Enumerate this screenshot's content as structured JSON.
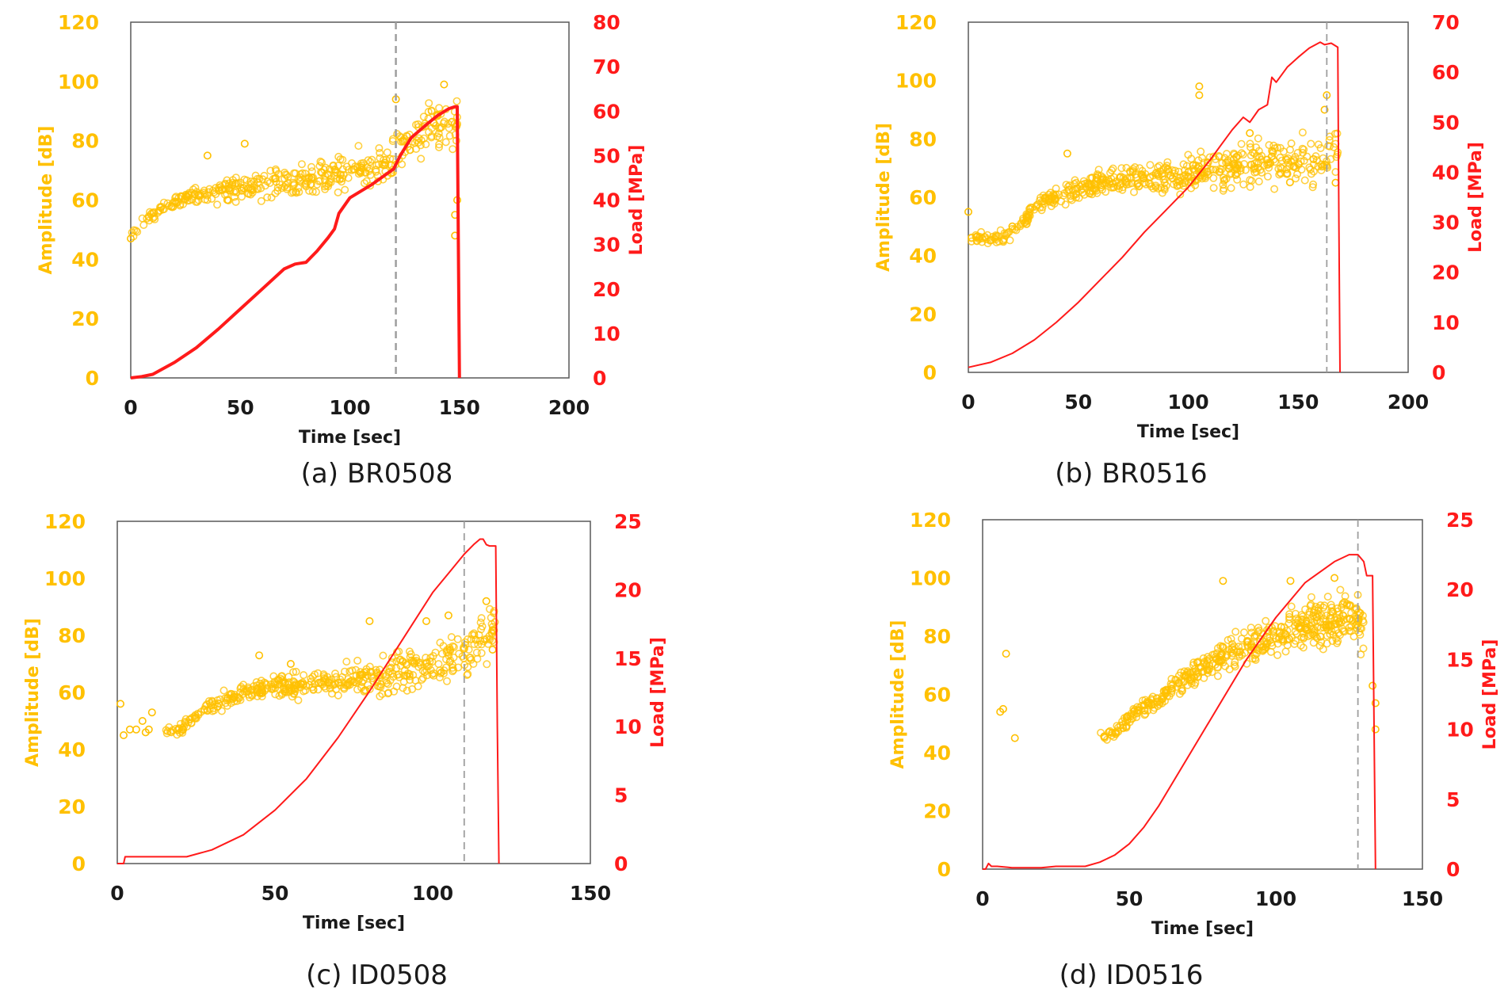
{
  "colors": {
    "amplitude": "#FFC000",
    "load": "#FF1A1A",
    "axis": "#595959",
    "vline": "#9E9E9E",
    "text": "#1a1a1a"
  },
  "chart_data": [
    {
      "type": "scatter",
      "caption": "(a) BR0508",
      "xlabel": "Time [sec]",
      "ylabel_left": "Amplitude [dB]",
      "ylabel_right": "Load [MPa]",
      "xlim": [
        0,
        200
      ],
      "xticks": [
        "0",
        "50",
        "100",
        "150",
        "200"
      ],
      "ylim_left": [
        0,
        120
      ],
      "yticks_left": [
        "0",
        "20",
        "40",
        "60",
        "80",
        "100",
        "120"
      ],
      "ylim_right": [
        0,
        80
      ],
      "yticks_right": [
        "0",
        "10",
        "20",
        "30",
        "40",
        "50",
        "60",
        "70",
        "80"
      ],
      "vline_x": 121,
      "load_width": "thick",
      "amp_density": 420,
      "amplitude_series": {
        "name": "Amplitude [dB]",
        "trend": [
          [
            0,
            47
          ],
          [
            5,
            53
          ],
          [
            12,
            56
          ],
          [
            25,
            61
          ],
          [
            40,
            63
          ],
          [
            60,
            65
          ],
          [
            80,
            67
          ],
          [
            100,
            70
          ],
          [
            115,
            72
          ],
          [
            121,
            76
          ],
          [
            130,
            82
          ],
          [
            140,
            85
          ],
          [
            149,
            86
          ]
        ],
        "outliers": [
          [
            0,
            47
          ],
          [
            35,
            75
          ],
          [
            52,
            79
          ],
          [
            121,
            94
          ],
          [
            143,
            99
          ],
          [
            148,
            55
          ],
          [
            148,
            48
          ],
          [
            149,
            60
          ]
        ]
      },
      "load_series": {
        "name": "Load [MPa]",
        "x": [
          0,
          5,
          10,
          20,
          30,
          40,
          50,
          60,
          70,
          75,
          80,
          85,
          90,
          93,
          95,
          100,
          110,
          120,
          123,
          128,
          135,
          140,
          145,
          148,
          149,
          150
        ],
        "y": [
          0,
          0.3,
          0.8,
          3.5,
          6.8,
          11,
          15.5,
          20,
          24.5,
          25.6,
          26,
          28.5,
          31.5,
          33.5,
          37,
          40.5,
          43.5,
          47,
          50,
          54,
          57,
          59,
          60.5,
          61,
          61,
          0
        ]
      }
    },
    {
      "type": "scatter",
      "caption": "(b) BR0516",
      "xlabel": "Time [sec]",
      "ylabel_left": "Amplitude [dB]",
      "ylabel_right": "Load [MPa]",
      "xlim": [
        0,
        200
      ],
      "xticks": [
        "0",
        "50",
        "100",
        "150",
        "200"
      ],
      "ylim_left": [
        0,
        120
      ],
      "yticks_left": [
        "0",
        "20",
        "40",
        "60",
        "80",
        "100",
        "120"
      ],
      "ylim_right": [
        0,
        70
      ],
      "yticks_right": [
        "0",
        "10",
        "20",
        "30",
        "40",
        "50",
        "60",
        "70"
      ],
      "vline_x": 163,
      "load_width": "thin",
      "amp_density": 560,
      "amplitude_series": {
        "name": "Amplitude [dB]",
        "trend": [
          [
            0,
            46
          ],
          [
            15,
            46
          ],
          [
            20,
            48
          ],
          [
            30,
            56
          ],
          [
            40,
            61
          ],
          [
            60,
            65
          ],
          [
            80,
            67
          ],
          [
            100,
            68
          ],
          [
            120,
            70
          ],
          [
            140,
            72
          ],
          [
            160,
            73
          ],
          [
            168,
            75
          ]
        ],
        "outliers": [
          [
            0,
            55
          ],
          [
            20,
            50
          ],
          [
            45,
            75
          ],
          [
            105,
            98
          ],
          [
            105,
            95
          ],
          [
            128,
            82
          ],
          [
            162,
            90
          ],
          [
            163,
            95
          ],
          [
            167,
            65
          ]
        ]
      },
      "load_series": {
        "name": "Load [MPa]",
        "x": [
          0,
          10,
          20,
          30,
          40,
          50,
          60,
          70,
          80,
          90,
          100,
          110,
          115,
          120,
          125,
          128,
          132,
          136,
          138,
          140,
          145,
          150,
          155,
          160,
          162,
          165,
          168,
          168.5,
          169
        ],
        "y": [
          1,
          2,
          3.8,
          6.5,
          10,
          14,
          18.5,
          23,
          28,
          32.5,
          37,
          42.5,
          45.5,
          48.5,
          51,
          50,
          52.5,
          53.5,
          59,
          58,
          61,
          63,
          64.8,
          66,
          65.5,
          65.8,
          65,
          30,
          0
        ]
      }
    },
    {
      "type": "scatter",
      "caption": "(c) ID0508",
      "xlabel": "Time [sec]",
      "ylabel_left": "Amplitude [dB]",
      "ylabel_right": "Load [MPa]",
      "xlim": [
        0,
        150
      ],
      "xticks": [
        "0",
        "50",
        "100",
        "150"
      ],
      "ylim_left": [
        0,
        120
      ],
      "yticks_left": [
        "0",
        "20",
        "40",
        "60",
        "80",
        "100",
        "120"
      ],
      "ylim_right": [
        0,
        25
      ],
      "yticks_right": [
        "0",
        "5",
        "10",
        "15",
        "20",
        "25"
      ],
      "vline_x": 110,
      "load_width": "thin",
      "amp_density": 480,
      "amplitude_series": {
        "name": "Amplitude [dB]",
        "trend": [
          [
            15,
            46
          ],
          [
            20,
            47
          ],
          [
            25,
            52
          ],
          [
            35,
            58
          ],
          [
            45,
            61
          ],
          [
            60,
            63
          ],
          [
            80,
            65
          ],
          [
            100,
            69
          ],
          [
            110,
            73
          ],
          [
            118,
            82
          ],
          [
            120,
            80
          ]
        ],
        "outliers": [
          [
            1,
            56
          ],
          [
            2,
            45
          ],
          [
            4,
            47
          ],
          [
            6,
            47
          ],
          [
            8,
            50
          ],
          [
            9,
            46
          ],
          [
            10,
            47
          ],
          [
            11,
            53
          ],
          [
            45,
            73
          ],
          [
            55,
            70
          ],
          [
            80,
            85
          ],
          [
            98,
            85
          ],
          [
            105,
            87
          ],
          [
            117,
            92
          ],
          [
            119,
            75
          ]
        ]
      },
      "load_series": {
        "name": "Load [MPa]",
        "x": [
          0,
          2,
          2.5,
          5,
          10,
          20,
          22,
          30,
          40,
          50,
          60,
          70,
          80,
          90,
          100,
          105,
          110,
          113,
          115,
          116,
          117,
          118,
          120,
          120.5,
          121
        ],
        "y": [
          0,
          0,
          0.5,
          0.5,
          0.5,
          0.5,
          0.5,
          1,
          2.1,
          3.9,
          6.2,
          9.2,
          12.6,
          16.2,
          19.8,
          21.2,
          22.6,
          23.3,
          23.7,
          23.7,
          23.3,
          23.2,
          23.2,
          10,
          0
        ]
      }
    },
    {
      "type": "scatter",
      "caption": "(d) ID0516",
      "xlabel": "Time [sec]",
      "ylabel_left": "Amplitude [dB]",
      "ylabel_right": "Load [MPa]",
      "xlim": [
        0,
        150
      ],
      "xticks": [
        "0",
        "50",
        "100",
        "150"
      ],
      "ylim_left": [
        0,
        120
      ],
      "yticks_left": [
        "0",
        "20",
        "40",
        "60",
        "80",
        "100",
        "120"
      ],
      "ylim_right": [
        0,
        25
      ],
      "yticks_right": [
        "0",
        "5",
        "10",
        "15",
        "20",
        "25"
      ],
      "vline_x": 128,
      "load_width": "thin",
      "amp_density": 520,
      "amplitude_series": {
        "name": "Amplitude [dB]",
        "trend": [
          [
            40,
            46
          ],
          [
            45,
            47
          ],
          [
            50,
            52
          ],
          [
            60,
            58
          ],
          [
            70,
            66
          ],
          [
            80,
            72
          ],
          [
            90,
            77
          ],
          [
            100,
            80
          ],
          [
            110,
            84
          ],
          [
            120,
            86
          ],
          [
            128,
            86
          ],
          [
            130,
            82
          ]
        ],
        "outliers": [
          [
            6,
            54
          ],
          [
            7,
            55
          ],
          [
            8,
            74
          ],
          [
            11,
            45
          ],
          [
            82,
            99
          ],
          [
            105,
            99
          ],
          [
            120,
            100
          ],
          [
            133,
            63
          ],
          [
            134,
            48
          ],
          [
            134,
            57
          ]
        ]
      },
      "load_series": {
        "name": "Load [MPa]",
        "x": [
          0,
          1,
          2,
          3,
          5,
          10,
          15,
          20,
          25,
          30,
          35,
          40,
          45,
          50,
          55,
          60,
          70,
          80,
          90,
          100,
          110,
          120,
          125,
          128,
          130,
          131,
          133,
          133.5,
          134
        ],
        "y": [
          0,
          0,
          0.4,
          0.2,
          0.2,
          0.1,
          0.1,
          0.1,
          0.2,
          0.2,
          0.2,
          0.5,
          1,
          1.8,
          3,
          4.5,
          8,
          11.5,
          15,
          18,
          20.5,
          22,
          22.5,
          22.5,
          22,
          21,
          21,
          10,
          0
        ]
      }
    }
  ]
}
